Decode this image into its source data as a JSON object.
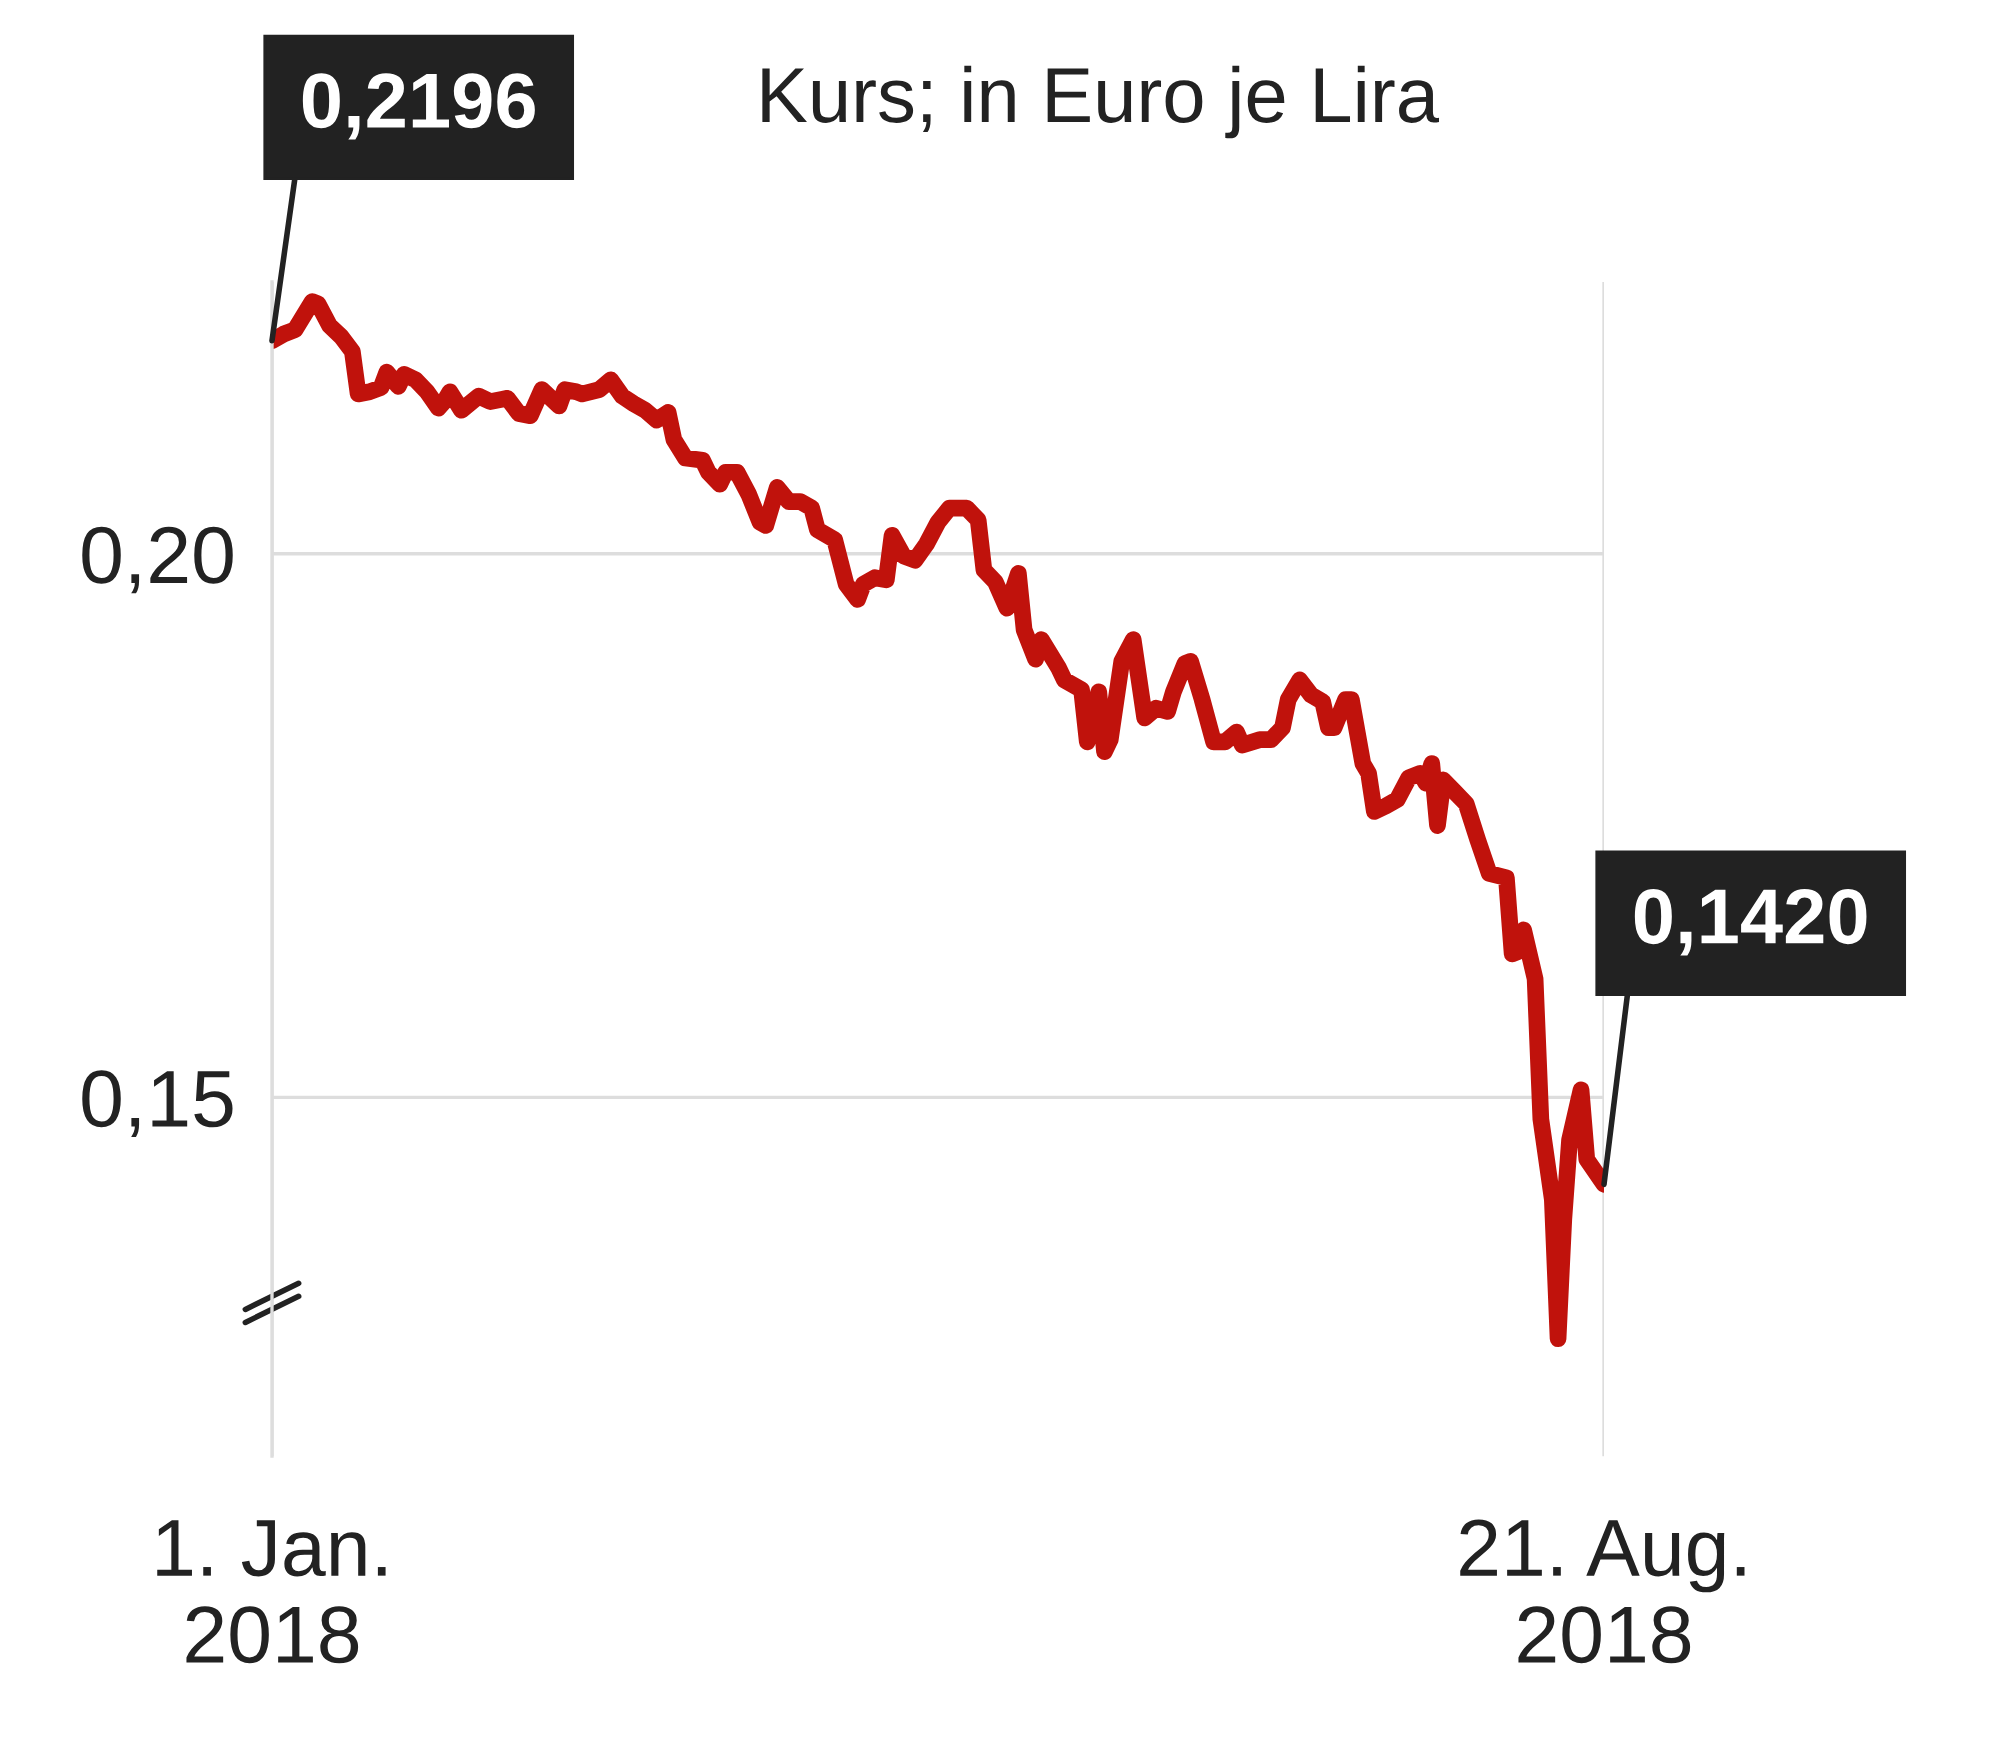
{
  "chart_data": {
    "type": "line",
    "title": "Kurs; in Euro je Lira",
    "x": [
      "2018-01-01",
      "2018-01-03",
      "2018-01-05",
      "2018-01-08",
      "2018-01-09",
      "2018-01-11",
      "2018-01-13",
      "2018-01-15",
      "2018-01-16",
      "2018-01-18",
      "2018-01-20",
      "2018-01-21",
      "2018-01-23",
      "2018-01-24",
      "2018-01-26",
      "2018-01-28",
      "2018-01-30",
      "2018-01-31",
      "2018-02-01",
      "2018-02-03",
      "2018-02-06",
      "2018-02-08",
      "2018-02-10",
      "2018-02-11",
      "2018-02-13",
      "2018-02-15",
      "2018-02-17",
      "2018-02-20",
      "2018-02-21",
      "2018-02-23",
      "2018-02-24",
      "2018-02-27",
      "2018-03-01",
      "2018-03-03",
      "2018-03-05",
      "2018-03-07",
      "2018-03-09",
      "2018-03-11",
      "2018-03-12",
      "2018-03-14",
      "2018-03-17",
      "2018-03-18",
      "2018-03-20",
      "2018-03-21",
      "2018-03-23",
      "2018-03-25",
      "2018-03-27",
      "2018-03-28",
      "2018-03-30",
      "2018-04-01",
      "2018-04-03",
      "2018-04-05",
      "2018-04-06",
      "2018-04-09",
      "2018-04-11",
      "2018-04-13",
      "2018-04-14",
      "2018-04-16",
      "2018-04-18",
      "2018-04-19",
      "2018-04-21",
      "2018-04-23",
      "2018-04-25",
      "2018-04-27",
      "2018-04-29",
      "2018-05-02",
      "2018-05-04",
      "2018-05-05",
      "2018-05-07",
      "2018-05-09",
      "2018-05-11",
      "2018-05-12",
      "2018-05-14",
      "2018-05-15",
      "2018-05-18",
      "2018-05-19",
      "2018-05-22",
      "2018-05-23",
      "2018-05-25",
      "2018-05-26",
      "2018-05-27",
      "2018-05-29",
      "2018-05-31",
      "2018-06-02",
      "2018-06-04",
      "2018-06-06",
      "2018-06-07",
      "2018-06-09",
      "2018-06-10",
      "2018-06-12",
      "2018-06-14",
      "2018-06-16",
      "2018-06-18",
      "2018-06-19",
      "2018-06-22",
      "2018-06-24",
      "2018-06-26",
      "2018-06-27",
      "2018-06-29",
      "2018-07-01",
      "2018-07-03",
      "2018-07-04",
      "2018-07-05",
      "2018-07-07",
      "2018-07-08",
      "2018-07-10",
      "2018-07-11",
      "2018-07-12",
      "2018-07-14",
      "2018-07-16",
      "2018-07-18",
      "2018-07-20",
      "2018-07-21",
      "2018-07-22",
      "2018-07-23",
      "2018-07-24",
      "2018-07-26",
      "2018-07-28",
      "2018-07-30",
      "2018-08-01",
      "2018-08-04",
      "2018-08-05",
      "2018-08-06",
      "2018-08-07",
      "2018-08-09",
      "2018-08-10",
      "2018-08-12",
      "2018-08-13",
      "2018-08-14",
      "2018-08-15",
      "2018-08-17",
      "2018-08-18",
      "2018-08-21"
    ],
    "series": [
      {
        "color": "#c0120c",
        "values": [
          0.2196,
          0.2202,
          0.2206,
          0.2232,
          0.223,
          0.221,
          0.22,
          0.2186,
          0.2147,
          0.2149,
          0.2153,
          0.2167,
          0.2154,
          0.2165,
          0.216,
          0.2149,
          0.2134,
          0.214,
          0.2149,
          0.2132,
          0.2145,
          0.214,
          0.2142,
          0.2143,
          0.2129,
          0.2127,
          0.2151,
          0.2136,
          0.2151,
          0.2149,
          0.2147,
          0.2151,
          0.216,
          0.2145,
          0.2138,
          0.2132,
          0.2123,
          0.213,
          0.2105,
          0.2088,
          0.2086,
          0.2075,
          0.2064,
          0.2075,
          0.2075,
          0.2055,
          0.2029,
          0.2026,
          0.2061,
          0.2048,
          0.2048,
          0.2042,
          0.2022,
          0.2013,
          0.1972,
          0.1958,
          0.1972,
          0.1978,
          0.1976,
          0.2017,
          0.1998,
          0.1994,
          0.2009,
          0.2029,
          0.2042,
          0.2042,
          0.2031,
          0.1985,
          0.1974,
          0.195,
          0.1982,
          0.193,
          0.1903,
          0.1921,
          0.1895,
          0.1884,
          0.1875,
          0.1827,
          0.1873,
          0.1818,
          0.1829,
          0.1901,
          0.1921,
          0.1849,
          0.1858,
          0.1855,
          0.1873,
          0.1899,
          0.1901,
          0.1866,
          0.1827,
          0.1827,
          0.1836,
          0.1824,
          0.1829,
          0.1829,
          0.184,
          0.1866,
          0.1884,
          0.187,
          0.1864,
          0.184,
          0.184,
          0.1866,
          0.1866,
          0.1807,
          0.1798,
          0.1763,
          0.1768,
          0.1774,
          0.1794,
          0.1798,
          0.1789,
          0.1807,
          0.175,
          0.1792,
          0.1781,
          0.177,
          0.1737,
          0.1706,
          0.1702,
          0.1632,
          0.1634,
          0.1654,
          0.1609,
          0.148,
          0.1406,
          0.1278,
          0.1388,
          0.1461,
          0.1507,
          0.1443,
          0.142
        ]
      }
    ],
    "xlim": [
      "2018-01-01",
      "2018-08-21"
    ],
    "xticks": [
      {
        "value": "2018-01-01",
        "label": "1. Jan.\n2018"
      },
      {
        "value": "2018-08-21",
        "label": "21. Aug.\n2018"
      }
    ],
    "ylim": [
      0.117,
      0.225
    ],
    "yticks": [
      {
        "value": 0.15,
        "label": "0,15"
      },
      {
        "value": 0.2,
        "label": "0,20"
      }
    ],
    "grid": true,
    "marker": "none",
    "line_style": "solid",
    "annotations": [
      {
        "text": "0,2196",
        "x": "2018-01-01",
        "y": 0.2196
      },
      {
        "text": "0,1420",
        "x": "2018-08-21",
        "y": 0.142
      }
    ]
  }
}
